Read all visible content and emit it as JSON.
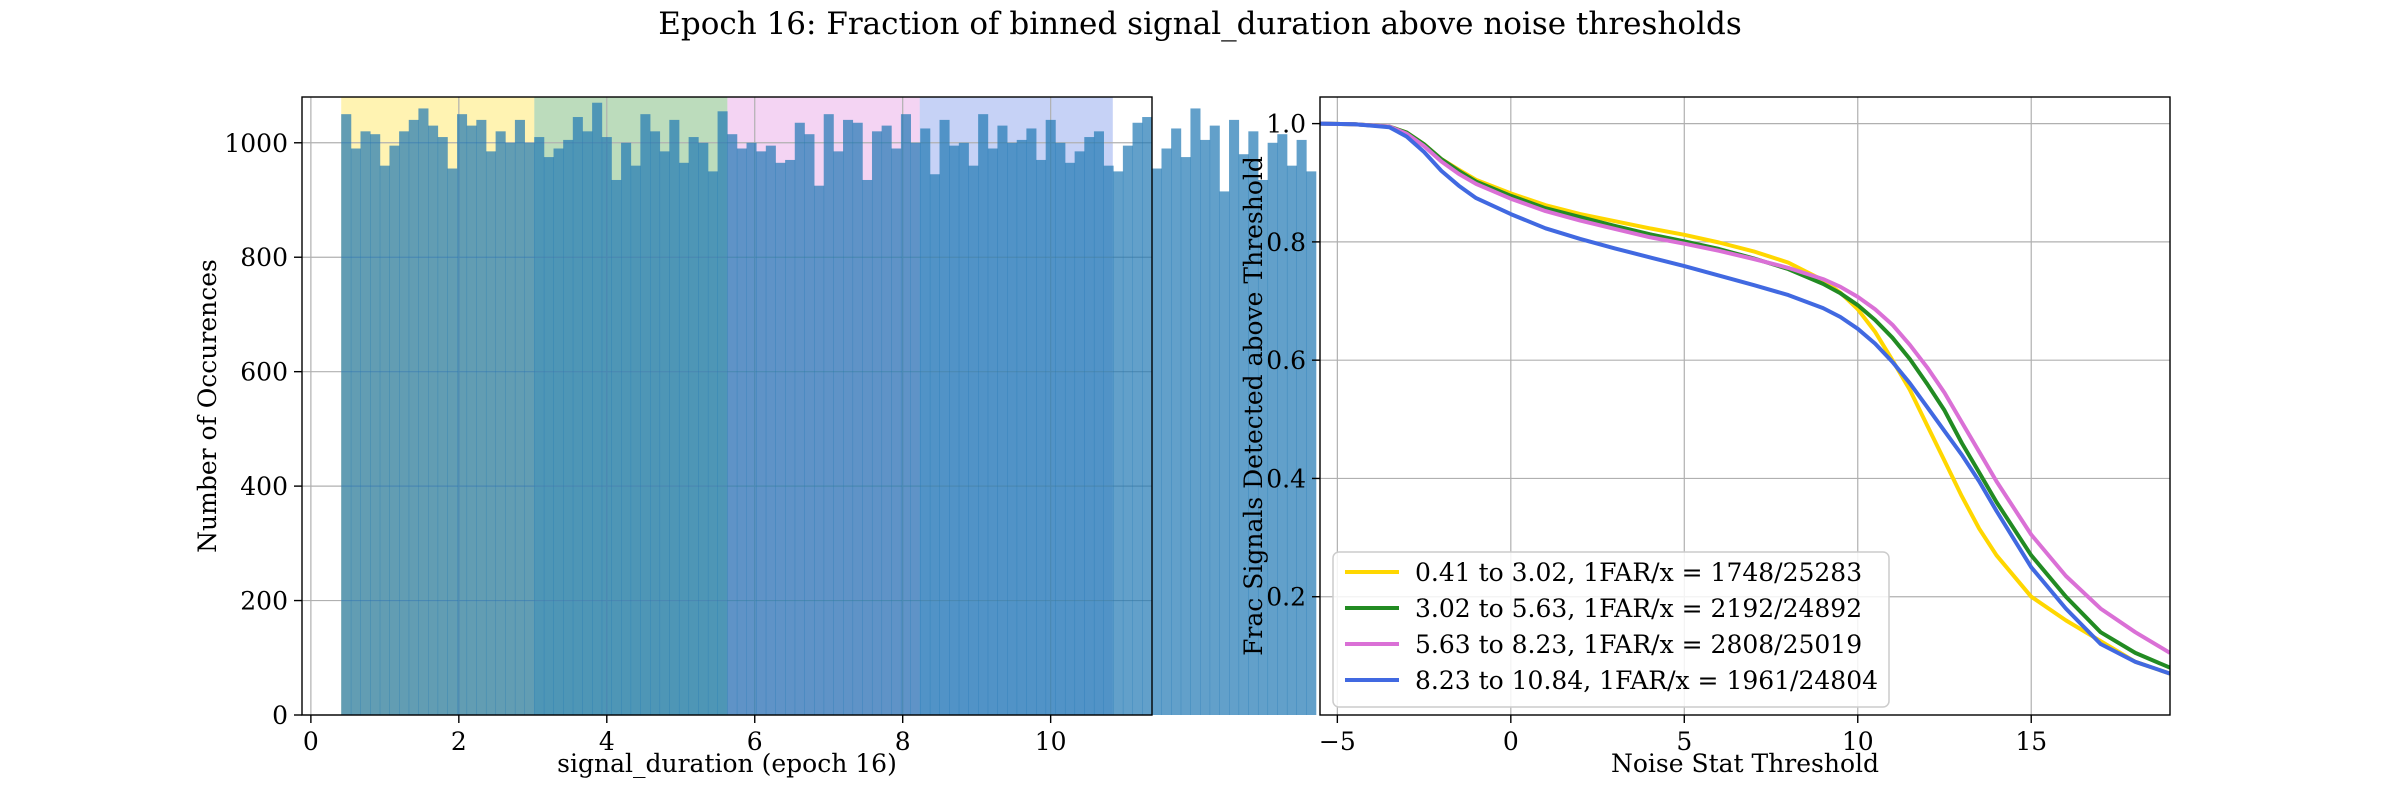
{
  "figure": {
    "title": "Epoch 16: Fraction of binned signal_duration above noise thresholds"
  },
  "colors": {
    "bin1": "#ffd700",
    "bin2": "#228b22",
    "bin3": "#da70d6",
    "bin4": "#4169e1",
    "grid": "#b0b0b0"
  },
  "chart_data": [
    {
      "type": "bar",
      "subtype": "histogram",
      "xlabel": "signal_duration (epoch 16)",
      "ylabel": "Number of Occurences",
      "xlim": [
        -0.12,
        11.37
      ],
      "ylim": [
        0,
        1080
      ],
      "xticks": [
        0,
        2,
        4,
        6,
        8,
        10
      ],
      "yticks": [
        0,
        200,
        400,
        600,
        800,
        1000
      ],
      "grid": true,
      "bins": {
        "start": 0.41,
        "width": 0.13045
      },
      "values": [
        1050,
        990,
        1020,
        1015,
        960,
        995,
        1020,
        1040,
        1060,
        1030,
        1010,
        955,
        1050,
        1030,
        1040,
        985,
        1020,
        1000,
        1040,
        1000,
        1010,
        975,
        990,
        1005,
        1045,
        1020,
        1070,
        1010,
        935,
        1000,
        960,
        1050,
        1020,
        985,
        1040,
        965,
        1010,
        1000,
        950,
        1055,
        1015,
        990,
        1000,
        985,
        995,
        965,
        970,
        1035,
        1015,
        925,
        1050,
        985,
        1040,
        1035,
        935,
        1020,
        1030,
        990,
        1050,
        1000,
        1025,
        945,
        1040,
        995,
        1000,
        960,
        1050,
        990,
        1030,
        1000,
        1005,
        1025,
        970,
        1040,
        1000,
        965,
        985,
        1010,
        1020,
        960,
        950,
        995,
        1035,
        1045,
        955,
        990,
        1025,
        975,
        1060,
        1005,
        1030,
        915,
        1040,
        980,
        1020,
        935,
        1000,
        1015,
        960,
        1005,
        950
      ],
      "bands": [
        {
          "range": [
            0.41,
            3.02
          ],
          "color": "#ffd700"
        },
        {
          "range": [
            3.02,
            5.63
          ],
          "color": "#228b22"
        },
        {
          "range": [
            5.63,
            8.23
          ],
          "color": "#da70d6"
        },
        {
          "range": [
            8.23,
            10.84
          ],
          "color": "#4169e1"
        }
      ]
    },
    {
      "type": "line",
      "xlabel": "Noise Stat Threshold",
      "ylabel": "Frac Signals Detected above Threshold",
      "xlim": [
        -5.5,
        19
      ],
      "ylim": [
        0.0,
        1.045
      ],
      "xticks": [
        -5,
        0,
        5,
        10,
        15
      ],
      "yticks": [
        0.2,
        0.4,
        0.6,
        0.8,
        1.0
      ],
      "grid": true,
      "legend_position": "lower-left",
      "x": [
        -5.5,
        -4.5,
        -3.5,
        -3,
        -2.5,
        -2,
        -1.5,
        -1,
        0,
        1,
        2,
        3,
        4,
        5,
        6,
        7,
        8,
        9,
        9.5,
        10,
        10.5,
        11,
        11.5,
        12,
        12.5,
        13,
        13.5,
        14,
        15,
        16,
        17,
        18,
        19
      ],
      "series": [
        {
          "name": "0.41 to 3.02, 1FAR/x = 1748/25283",
          "color": "#ffd700",
          "values": [
            1.0,
            0.999,
            0.995,
            0.985,
            0.965,
            0.94,
            0.922,
            0.905,
            0.882,
            0.862,
            0.847,
            0.835,
            0.823,
            0.812,
            0.799,
            0.784,
            0.765,
            0.735,
            0.714,
            0.686,
            0.648,
            0.6,
            0.55,
            0.49,
            0.43,
            0.37,
            0.315,
            0.27,
            0.2,
            0.16,
            0.125,
            0.09,
            0.07
          ]
        },
        {
          "name": "3.02 to 5.63, 1FAR/x = 2192/24892",
          "color": "#228b22",
          "values": [
            1.0,
            0.999,
            0.995,
            0.985,
            0.965,
            0.94,
            0.92,
            0.902,
            0.878,
            0.857,
            0.842,
            0.827,
            0.813,
            0.801,
            0.788,
            0.772,
            0.754,
            0.729,
            0.713,
            0.693,
            0.668,
            0.638,
            0.602,
            0.56,
            0.515,
            0.46,
            0.41,
            0.36,
            0.27,
            0.2,
            0.14,
            0.105,
            0.08
          ]
        },
        {
          "name": "5.63 to 8.23, 1FAR/x = 2808/25019",
          "color": "#da70d6",
          "values": [
            1.0,
            0.999,
            0.995,
            0.983,
            0.962,
            0.936,
            0.915,
            0.898,
            0.873,
            0.852,
            0.836,
            0.822,
            0.808,
            0.797,
            0.785,
            0.771,
            0.756,
            0.737,
            0.724,
            0.707,
            0.686,
            0.66,
            0.626,
            0.588,
            0.545,
            0.495,
            0.445,
            0.395,
            0.305,
            0.235,
            0.18,
            0.14,
            0.105
          ]
        },
        {
          "name": "8.23 to 10.84, 1FAR/x = 1961/24804",
          "color": "#4169e1",
          "values": [
            1.0,
            0.999,
            0.994,
            0.978,
            0.952,
            0.92,
            0.895,
            0.874,
            0.847,
            0.823,
            0.805,
            0.789,
            0.774,
            0.759,
            0.743,
            0.727,
            0.71,
            0.688,
            0.673,
            0.653,
            0.628,
            0.597,
            0.561,
            0.521,
            0.48,
            0.44,
            0.395,
            0.345,
            0.25,
            0.18,
            0.12,
            0.09,
            0.07
          ]
        }
      ]
    }
  ]
}
